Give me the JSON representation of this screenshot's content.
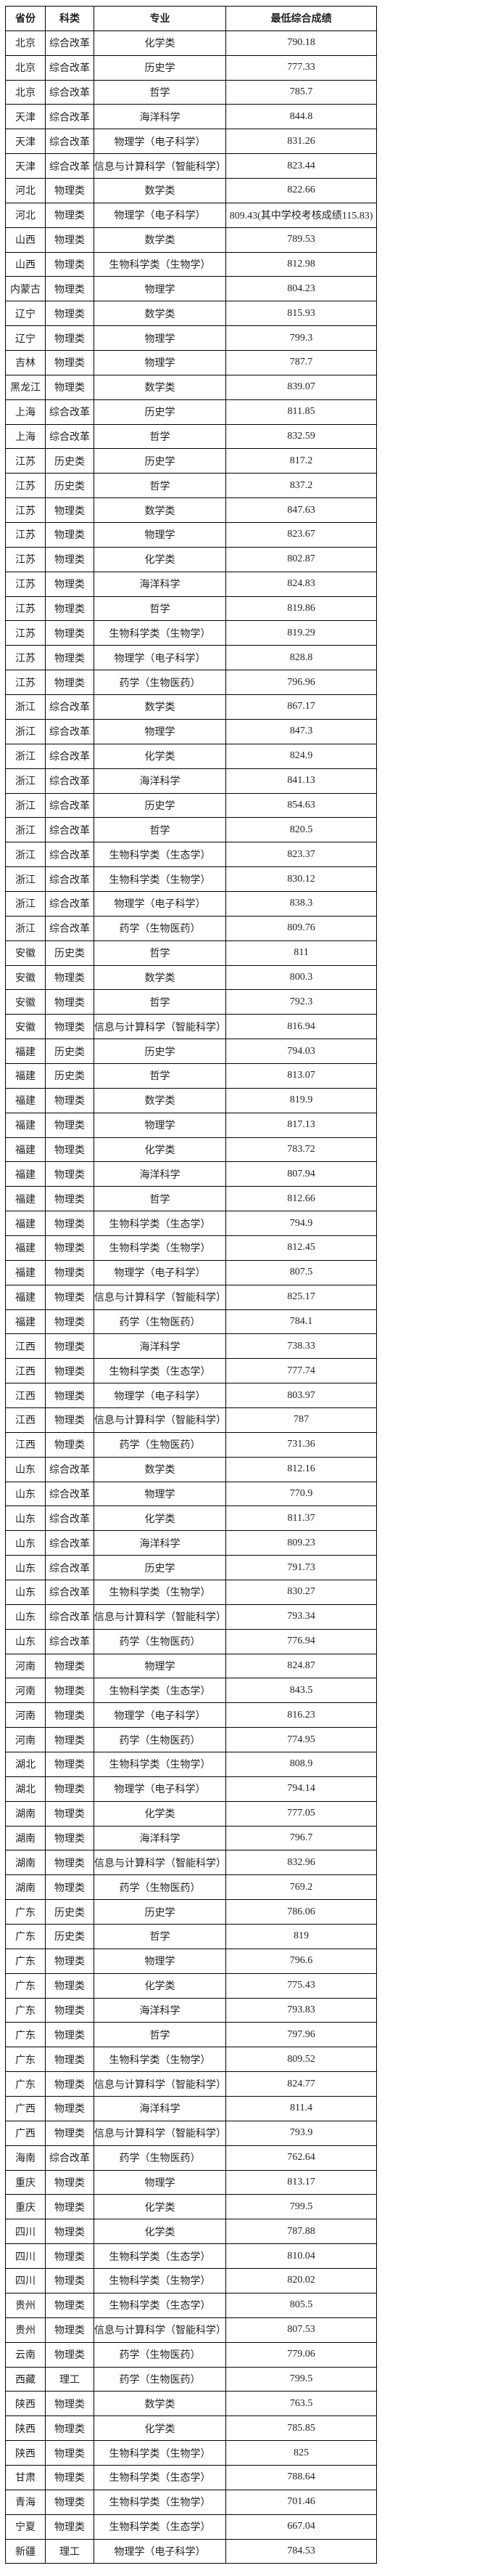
{
  "table": {
    "headers": [
      "省份",
      "科类",
      "专业",
      "最低综合成绩"
    ],
    "rows": [
      [
        "北京",
        "综合改革",
        "化学类",
        "790.18"
      ],
      [
        "北京",
        "综合改革",
        "历史学",
        "777.33"
      ],
      [
        "北京",
        "综合改革",
        "哲学",
        "785.7"
      ],
      [
        "天津",
        "综合改革",
        "海洋科学",
        "844.8"
      ],
      [
        "天津",
        "综合改革",
        "物理学（电子科学）",
        "831.26"
      ],
      [
        "天津",
        "综合改革",
        "信息与计算科学（智能科学）",
        "823.44"
      ],
      [
        "河北",
        "物理类",
        "数学类",
        "822.66"
      ],
      [
        "河北",
        "物理类",
        "物理学（电子科学）",
        "809.43(其中学校考核成绩115.83)"
      ],
      [
        "山西",
        "物理类",
        "数学类",
        "789.53"
      ],
      [
        "山西",
        "物理类",
        "生物科学类（生物学）",
        "812.98"
      ],
      [
        "内蒙古",
        "物理类",
        "物理学",
        "804.23"
      ],
      [
        "辽宁",
        "物理类",
        "数学类",
        "815.93"
      ],
      [
        "辽宁",
        "物理类",
        "物理学",
        "799.3"
      ],
      [
        "吉林",
        "物理类",
        "物理学",
        "787.7"
      ],
      [
        "黑龙江",
        "物理类",
        "数学类",
        "839.07"
      ],
      [
        "上海",
        "综合改革",
        "历史学",
        "811.85"
      ],
      [
        "上海",
        "综合改革",
        "哲学",
        "832.59"
      ],
      [
        "江苏",
        "历史类",
        "历史学",
        "817.2"
      ],
      [
        "江苏",
        "历史类",
        "哲学",
        "837.2"
      ],
      [
        "江苏",
        "物理类",
        "数学类",
        "847.63"
      ],
      [
        "江苏",
        "物理类",
        "物理学",
        "823.67"
      ],
      [
        "江苏",
        "物理类",
        "化学类",
        "802.87"
      ],
      [
        "江苏",
        "物理类",
        "海洋科学",
        "824.83"
      ],
      [
        "江苏",
        "物理类",
        "哲学",
        "819.86"
      ],
      [
        "江苏",
        "物理类",
        "生物科学类（生物学）",
        "819.29"
      ],
      [
        "江苏",
        "物理类",
        "物理学（电子科学）",
        "828.8"
      ],
      [
        "江苏",
        "物理类",
        "药学（生物医药）",
        "796.96"
      ],
      [
        "浙江",
        "综合改革",
        "数学类",
        "867.17"
      ],
      [
        "浙江",
        "综合改革",
        "物理学",
        "847.3"
      ],
      [
        "浙江",
        "综合改革",
        "化学类",
        "824.9"
      ],
      [
        "浙江",
        "综合改革",
        "海洋科学",
        "841.13"
      ],
      [
        "浙江",
        "综合改革",
        "历史学",
        "854.63"
      ],
      [
        "浙江",
        "综合改革",
        "哲学",
        "820.5"
      ],
      [
        "浙江",
        "综合改革",
        "生物科学类（生态学）",
        "823.37"
      ],
      [
        "浙江",
        "综合改革",
        "生物科学类（生物学）",
        "830.12"
      ],
      [
        "浙江",
        "综合改革",
        "物理学（电子科学）",
        "838.3"
      ],
      [
        "浙江",
        "综合改革",
        "药学（生物医药）",
        "809.76"
      ],
      [
        "安徽",
        "历史类",
        "哲学",
        "811"
      ],
      [
        "安徽",
        "物理类",
        "数学类",
        "800.3"
      ],
      [
        "安徽",
        "物理类",
        "哲学",
        "792.3"
      ],
      [
        "安徽",
        "物理类",
        "信息与计算科学（智能科学）",
        "816.94"
      ],
      [
        "福建",
        "历史类",
        "历史学",
        "794.03"
      ],
      [
        "福建",
        "历史类",
        "哲学",
        "813.07"
      ],
      [
        "福建",
        "物理类",
        "数学类",
        "819.9"
      ],
      [
        "福建",
        "物理类",
        "物理学",
        "817.13"
      ],
      [
        "福建",
        "物理类",
        "化学类",
        "783.72"
      ],
      [
        "福建",
        "物理类",
        "海洋科学",
        "807.94"
      ],
      [
        "福建",
        "物理类",
        "哲学",
        "812.66"
      ],
      [
        "福建",
        "物理类",
        "生物科学类（生态学）",
        "794.9"
      ],
      [
        "福建",
        "物理类",
        "生物科学类（生物学）",
        "812.45"
      ],
      [
        "福建",
        "物理类",
        "物理学（电子科学）",
        "807.5"
      ],
      [
        "福建",
        "物理类",
        "信息与计算科学（智能科学）",
        "825.17"
      ],
      [
        "福建",
        "物理类",
        "药学（生物医药）",
        "784.1"
      ],
      [
        "江西",
        "物理类",
        "海洋科学",
        "738.33"
      ],
      [
        "江西",
        "物理类",
        "生物科学类（生态学）",
        "777.74"
      ],
      [
        "江西",
        "物理类",
        "物理学（电子科学）",
        "803.97"
      ],
      [
        "江西",
        "物理类",
        "信息与计算科学（智能科学）",
        "787"
      ],
      [
        "江西",
        "物理类",
        "药学（生物医药）",
        "731.36"
      ],
      [
        "山东",
        "综合改革",
        "数学类",
        "812.16"
      ],
      [
        "山东",
        "综合改革",
        "物理学",
        "770.9"
      ],
      [
        "山东",
        "综合改革",
        "化学类",
        "811.37"
      ],
      [
        "山东",
        "综合改革",
        "海洋科学",
        "809.23"
      ],
      [
        "山东",
        "综合改革",
        "历史学",
        "791.73"
      ],
      [
        "山东",
        "综合改革",
        "生物科学类（生物学）",
        "830.27"
      ],
      [
        "山东",
        "综合改革",
        "信息与计算科学（智能科学）",
        "793.34"
      ],
      [
        "山东",
        "综合改革",
        "药学（生物医药）",
        "776.94"
      ],
      [
        "河南",
        "物理类",
        "物理学",
        "824.87"
      ],
      [
        "河南",
        "物理类",
        "生物科学类（生态学）",
        "843.5"
      ],
      [
        "河南",
        "物理类",
        "物理学（电子科学）",
        "816.23"
      ],
      [
        "河南",
        "物理类",
        "药学（生物医药）",
        "774.95"
      ],
      [
        "湖北",
        "物理类",
        "生物科学类（生物学）",
        "808.9"
      ],
      [
        "湖北",
        "物理类",
        "物理学（电子科学）",
        "794.14"
      ],
      [
        "湖南",
        "物理类",
        "化学类",
        "777.05"
      ],
      [
        "湖南",
        "物理类",
        "海洋科学",
        "796.7"
      ],
      [
        "湖南",
        "物理类",
        "信息与计算科学（智能科学）",
        "832.96"
      ],
      [
        "湖南",
        "物理类",
        "药学（生物医药）",
        "769.2"
      ],
      [
        "广东",
        "历史类",
        "历史学",
        "786.06"
      ],
      [
        "广东",
        "历史类",
        "哲学",
        "819"
      ],
      [
        "广东",
        "物理类",
        "物理学",
        "796.6"
      ],
      [
        "广东",
        "物理类",
        "化学类",
        "775.43"
      ],
      [
        "广东",
        "物理类",
        "海洋科学",
        "793.83"
      ],
      [
        "广东",
        "物理类",
        "哲学",
        "797.96"
      ],
      [
        "广东",
        "物理类",
        "生物科学类（生物学）",
        "809.52"
      ],
      [
        "广东",
        "物理类",
        "信息与计算科学（智能科学）",
        "824.77"
      ],
      [
        "广西",
        "物理类",
        "海洋科学",
        "811.4"
      ],
      [
        "广西",
        "物理类",
        "信息与计算科学（智能科学）",
        "793.9"
      ],
      [
        "海南",
        "综合改革",
        "药学（生物医药）",
        "762.64"
      ],
      [
        "重庆",
        "物理类",
        "物理学",
        "813.17"
      ],
      [
        "重庆",
        "物理类",
        "化学类",
        "799.5"
      ],
      [
        "四川",
        "物理类",
        "化学类",
        "787.88"
      ],
      [
        "四川",
        "物理类",
        "生物科学类（生态学）",
        "810.04"
      ],
      [
        "四川",
        "物理类",
        "生物科学类（生物学）",
        "820.02"
      ],
      [
        "贵州",
        "物理类",
        "生物科学类（生态学）",
        "805.5"
      ],
      [
        "贵州",
        "物理类",
        "信息与计算科学（智能科学）",
        "807.53"
      ],
      [
        "云南",
        "物理类",
        "药学（生物医药）",
        "779.06"
      ],
      [
        "西藏",
        "理工",
        "药学（生物医药）",
        "799.5"
      ],
      [
        "陕西",
        "物理类",
        "数学类",
        "763.5"
      ],
      [
        "陕西",
        "物理类",
        "化学类",
        "785.85"
      ],
      [
        "陕西",
        "物理类",
        "生物科学类（生物学）",
        "825"
      ],
      [
        "甘肃",
        "物理类",
        "生物科学类（生态学）",
        "788.64"
      ],
      [
        "青海",
        "物理类",
        "生物科学类（生物学）",
        "701.46"
      ],
      [
        "宁夏",
        "物理类",
        "生物科学类（生态学）",
        "667.04"
      ],
      [
        "新疆",
        "理工",
        "物理学（电子科学）",
        "784.53"
      ]
    ]
  }
}
